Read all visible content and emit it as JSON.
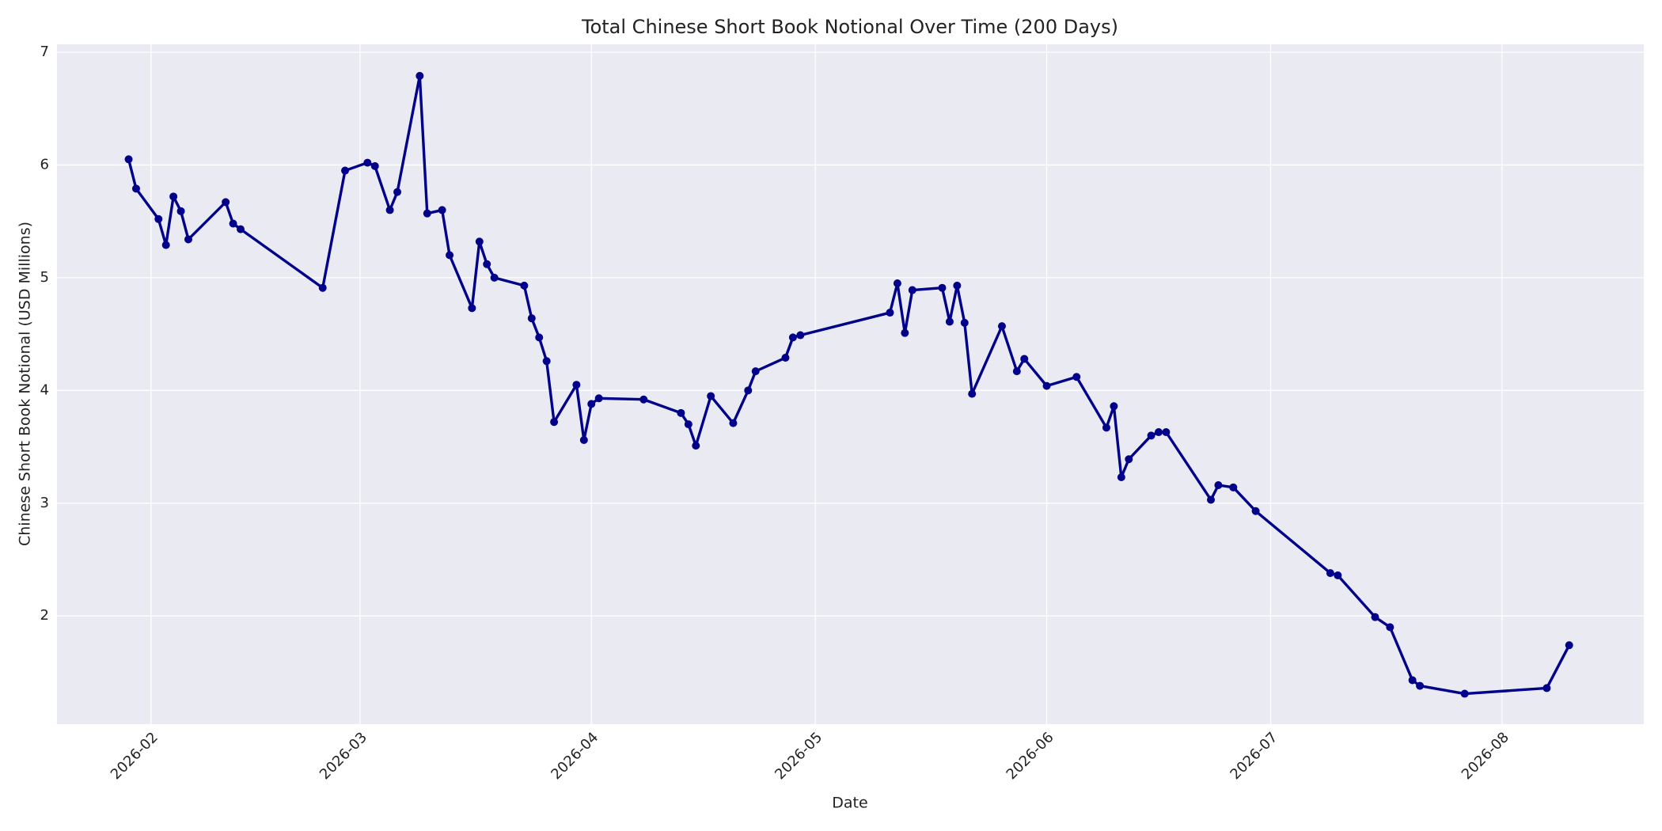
{
  "chart_data": {
    "type": "line",
    "title": "Total Chinese Short Book Notional Over Time (200 Days)",
    "x_label": "Date",
    "y_label": "Chinese Short Book Notional (USD Millions)",
    "x": [
      29,
      30,
      33,
      34,
      35,
      36,
      37,
      42,
      43,
      44,
      55,
      58,
      61,
      62,
      64,
      65,
      68,
      69,
      71,
      72,
      75,
      76,
      77,
      78,
      82,
      83,
      84,
      85,
      86,
      89,
      90,
      91,
      92,
      98,
      103,
      104,
      105,
      107,
      110,
      112,
      113,
      117,
      118,
      119,
      131,
      132,
      133,
      134,
      138,
      139,
      140,
      141,
      142,
      146,
      148,
      149,
      152,
      156,
      160,
      161,
      162,
      163,
      166,
      167,
      168,
      174,
      175,
      177,
      180,
      190,
      191,
      196,
      198,
      201,
      202,
      208,
      219,
      222
    ],
    "values": [
      6.05,
      5.79,
      5.52,
      5.29,
      5.72,
      5.59,
      5.34,
      5.67,
      5.48,
      5.43,
      4.91,
      5.95,
      6.02,
      5.99,
      5.6,
      5.76,
      6.79,
      5.57,
      5.6,
      5.2,
      4.73,
      5.32,
      5.12,
      5.0,
      4.93,
      4.64,
      4.47,
      4.26,
      3.72,
      4.05,
      3.56,
      3.88,
      3.93,
      3.92,
      3.8,
      3.7,
      3.51,
      3.95,
      3.71,
      4.0,
      4.17,
      4.29,
      4.47,
      4.49,
      4.69,
      4.95,
      4.51,
      4.89,
      4.91,
      4.61,
      4.93,
      4.6,
      3.97,
      4.57,
      4.17,
      4.28,
      4.04,
      4.12,
      3.67,
      3.86,
      3.23,
      3.39,
      3.6,
      3.63,
      3.63,
      3.03,
      3.16,
      3.14,
      2.93,
      2.38,
      2.36,
      1.99,
      1.9,
      1.43,
      1.38,
      1.31,
      1.36,
      1.74
    ],
    "color": "#00008b",
    "xlim": [
      19.4,
      232
    ],
    "xticks": [
      {
        "value": 32,
        "label": "2026-02"
      },
      {
        "value": 60,
        "label": "2026-03"
      },
      {
        "value": 91,
        "label": "2026-04"
      },
      {
        "value": 121,
        "label": "2026-05"
      },
      {
        "value": 152,
        "label": "2026-06"
      },
      {
        "value": 182,
        "label": "2026-07"
      },
      {
        "value": 213,
        "label": "2026-08"
      }
    ],
    "ylim": [
      1.04,
      7.07
    ],
    "yticks": [
      2,
      3,
      4,
      5,
      6,
      7
    ],
    "grid": true
  }
}
